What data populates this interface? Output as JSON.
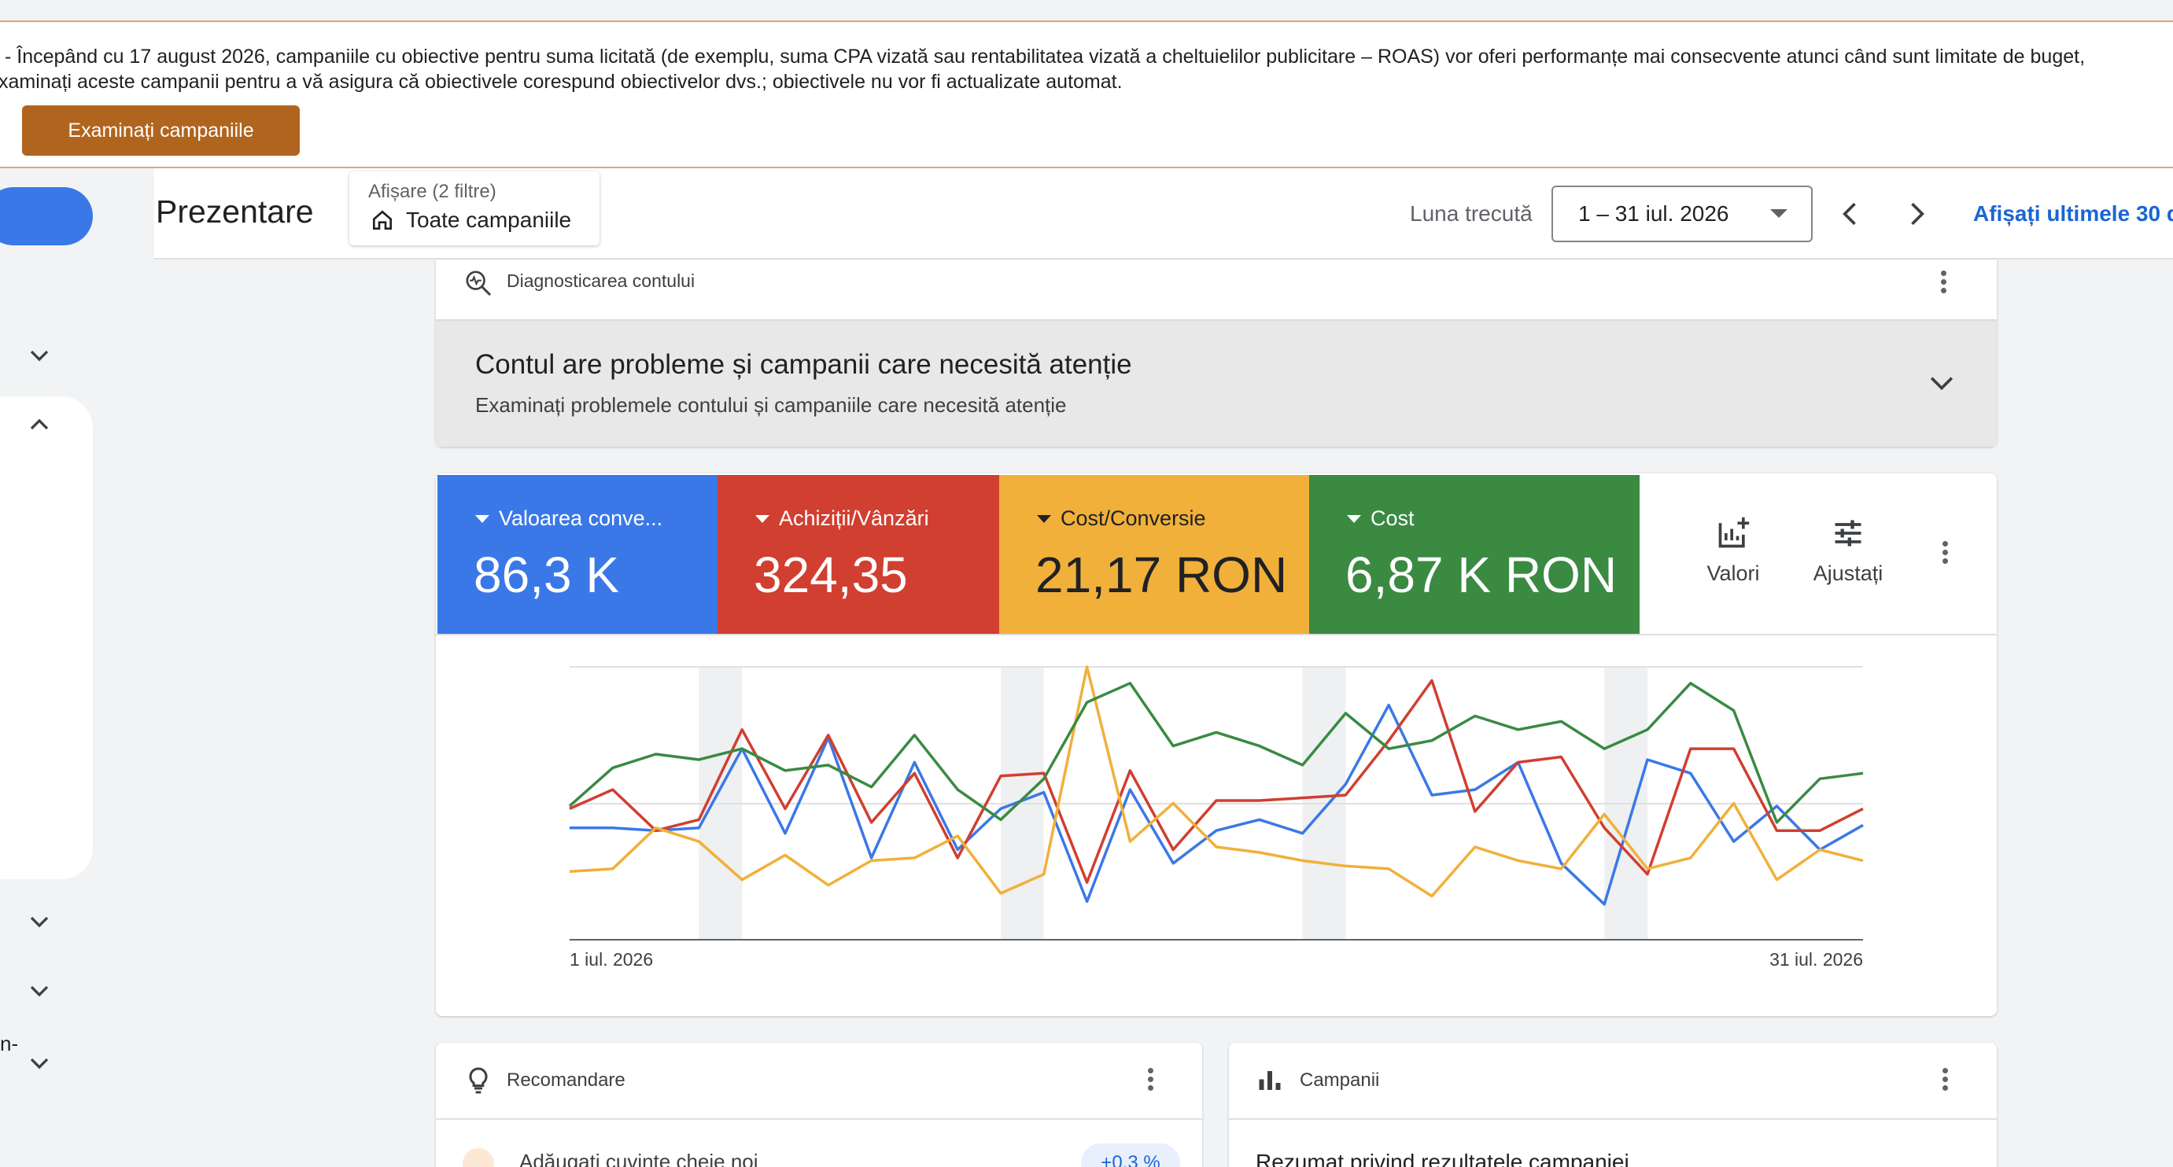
{
  "banner": {
    "line1": "- Începând cu 17 august 2026, campaniile cu obiective pentru suma licitată (de exemplu, suma CPA vizată sau rentabilitatea vizată a cheltuielilor publicitare – ROAS) vor oferi performanțe mai consecvente atunci când sunt limitate de buget,",
    "line2": "xaminați aceste campanii pentru a vă asigura că obiectivele corespund obiectivelor dvs.; obiectivele nu vor fi actualizate automat.",
    "button_label": "Examinați campaniile",
    "border_color": "#d9a877",
    "button_color": "#b0651f"
  },
  "sidebar": {
    "partial_label": "n-"
  },
  "header": {
    "title": "Prezentare",
    "filter_caption": "Afișare (2 filtre)",
    "filter_value": "Toate campaniile",
    "date_label": "Luna trecută",
    "date_range": "1 – 31 iul. 2026",
    "show_last": "Afișați ultimele 30 d"
  },
  "diagnostics": {
    "header": "Diagnosticarea contului",
    "title": "Contul are probleme și campanii care necesită atenție",
    "subtitle": "Examinați problemele contului și campaniile care necesită atenție"
  },
  "metrics": {
    "tiles": [
      {
        "label": "Valoarea conve...",
        "value": "86,3 K",
        "color": "#3b78e7"
      },
      {
        "label": "Achiziții/Vânzări",
        "value": "324,35",
        "color": "#d03f30"
      },
      {
        "label": "Cost/Conversie",
        "value": "21,17 RON",
        "color": "#f0b03a"
      },
      {
        "label": "Cost",
        "value": "6,87 K RON",
        "color": "#3a8a42"
      }
    ],
    "tools": {
      "values_label": "Valori",
      "adjust_label": "Ajustați"
    }
  },
  "chart_data": {
    "type": "line",
    "x_start_label": "1 iul. 2026",
    "x_end_label": "31 iul. 2026",
    "x": [
      1,
      2,
      3,
      4,
      5,
      6,
      7,
      8,
      9,
      10,
      11,
      12,
      13,
      14,
      15,
      16,
      17,
      18,
      19,
      20,
      21,
      22,
      23,
      24,
      25,
      26,
      27,
      28,
      29,
      30,
      31
    ],
    "weekend_bands": [
      [
        4,
        5
      ],
      [
        11,
        12
      ],
      [
        18,
        19
      ],
      [
        25,
        26
      ]
    ],
    "series": [
      {
        "color": "#3b78e7",
        "values": [
          0.41,
          0.41,
          0.4,
          0.41,
          0.7,
          0.39,
          0.74,
          0.3,
          0.65,
          0.33,
          0.48,
          0.54,
          0.14,
          0.55,
          0.28,
          0.4,
          0.44,
          0.39,
          0.57,
          0.86,
          0.53,
          0.55,
          0.65,
          0.28,
          0.13,
          0.66,
          0.61,
          0.36,
          0.49,
          0.33,
          0.42
        ]
      },
      {
        "color": "#d03f30",
        "values": [
          0.48,
          0.55,
          0.4,
          0.44,
          0.77,
          0.48,
          0.75,
          0.43,
          0.61,
          0.3,
          0.6,
          0.61,
          0.21,
          0.62,
          0.33,
          0.51,
          0.51,
          0.52,
          0.53,
          0.73,
          0.95,
          0.47,
          0.65,
          0.67,
          0.41,
          0.24,
          0.7,
          0.7,
          0.4,
          0.4,
          0.48
        ]
      },
      {
        "color": "#f0b03a",
        "values": [
          0.25,
          0.26,
          0.41,
          0.36,
          0.22,
          0.31,
          0.2,
          0.29,
          0.3,
          0.38,
          0.17,
          0.24,
          1.0,
          0.36,
          0.5,
          0.34,
          0.32,
          0.29,
          0.27,
          0.26,
          0.16,
          0.34,
          0.29,
          0.26,
          0.46,
          0.26,
          0.3,
          0.5,
          0.22,
          0.33,
          0.29
        ]
      },
      {
        "color": "#3a8a42",
        "values": [
          0.49,
          0.63,
          0.68,
          0.66,
          0.7,
          0.62,
          0.64,
          0.56,
          0.75,
          0.55,
          0.44,
          0.59,
          0.87,
          0.94,
          0.71,
          0.76,
          0.71,
          0.64,
          0.83,
          0.7,
          0.73,
          0.82,
          0.77,
          0.8,
          0.7,
          0.77,
          0.94,
          0.84,
          0.43,
          0.59,
          0.61
        ]
      }
    ]
  },
  "recommendation": {
    "header": "Recomandare",
    "item": "Adăugați cuvinte cheie noi",
    "badge": "+0,3 %"
  },
  "campaigns": {
    "header": "Campanii",
    "body": "Rezumat privind rezultatele campaniei"
  }
}
